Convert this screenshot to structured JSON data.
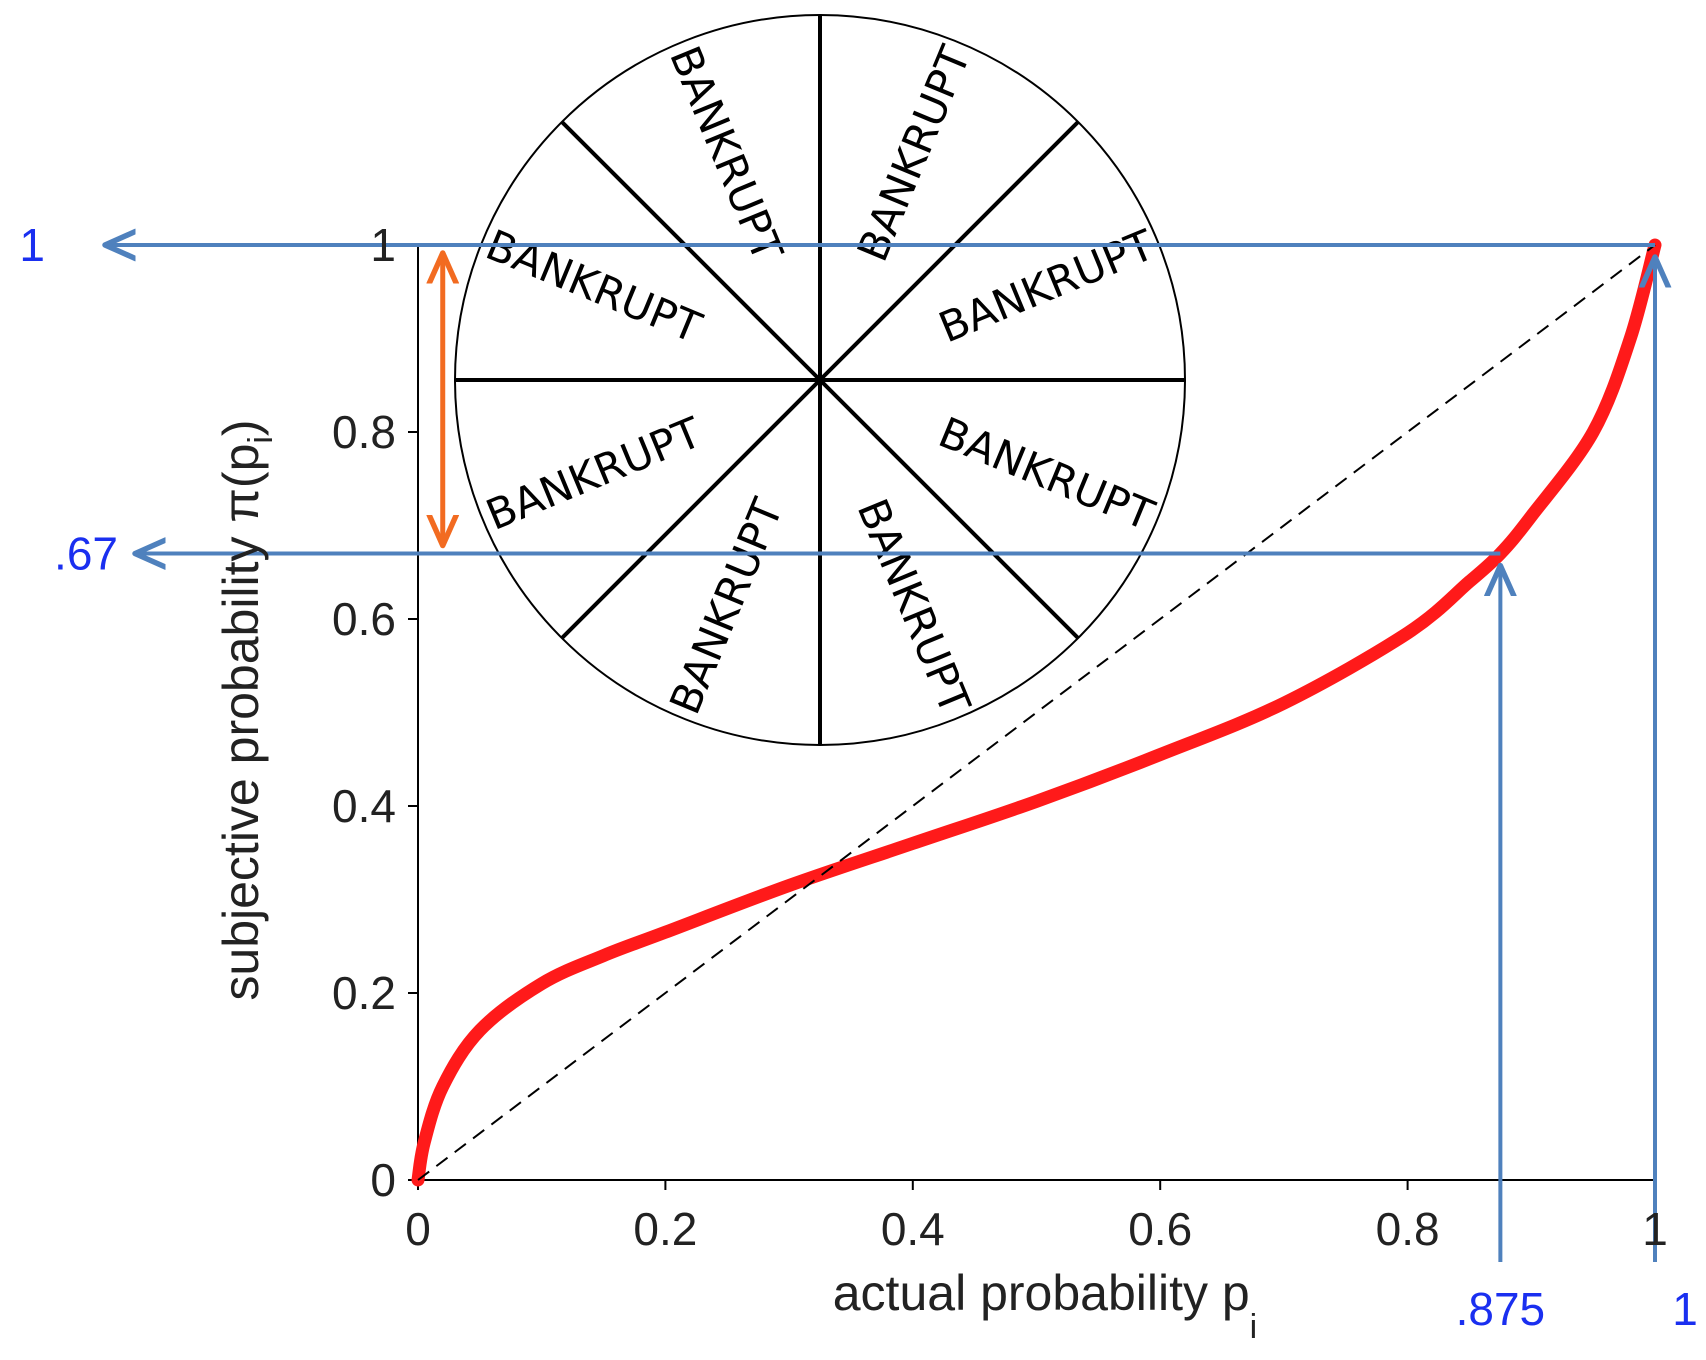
{
  "chart_data": {
    "type": "line",
    "xlabel": {
      "main": "actual probability p",
      "sub": "i"
    },
    "ylabel": {
      "main": "subjective probability π(p",
      "sub": "i",
      "close": ")"
    },
    "xlim": [
      0,
      1
    ],
    "ylim": [
      0,
      1
    ],
    "x_ticks": [
      0,
      0.2,
      0.4,
      0.6,
      0.8,
      1
    ],
    "x_tick_labels": [
      "0",
      "0.2",
      "0.4",
      "0.6",
      "0.8",
      "1"
    ],
    "y_ticks": [
      0,
      0.2,
      0.4,
      0.6,
      0.8,
      1
    ],
    "y_tick_labels": [
      "0",
      "0.2",
      "0.4",
      "0.6",
      "0.8",
      "1"
    ],
    "grid": false,
    "series": [
      {
        "color": "#ff1a1a",
        "x": [
          0,
          0.005,
          0.02,
          0.05,
          0.1,
          0.15,
          0.2,
          0.3,
          0.4,
          0.5,
          0.6,
          0.7,
          0.8,
          0.85,
          0.875,
          0.9,
          0.95,
          0.98,
          1.0
        ],
        "y": [
          0,
          0.04,
          0.1,
          0.16,
          0.21,
          0.24,
          0.265,
          0.315,
          0.36,
          0.405,
          0.455,
          0.51,
          0.585,
          0.64,
          0.67,
          0.71,
          0.8,
          0.9,
          1.0
        ]
      },
      {
        "style": "dashed",
        "color": "#000000",
        "x": [
          0,
          1
        ],
        "y": [
          0,
          1
        ]
      }
    ],
    "annotations": {
      "color": "#4f81bd",
      "orange_color": "#f26b21",
      "label_color": "#1a2ff0",
      "guides": [
        {
          "x": 0.875,
          "y": 0.67,
          "x_label": ".875",
          "y_label": ".67"
        },
        {
          "x": 1,
          "y": 1,
          "x_label": "1",
          "y_label": "1"
        }
      ],
      "double_arrow": {
        "x": 0.02,
        "y_from": 0.67,
        "y_to": 1
      }
    },
    "wheel": {
      "sectors": 8,
      "labels": [
        "BANKRUPT",
        "BANKRUPT",
        "BANKRUPT",
        "BANKRUPT",
        "BANKRUPT",
        "BANKRUPT",
        "BANKRUPT",
        "BANKRUPT"
      ]
    }
  }
}
